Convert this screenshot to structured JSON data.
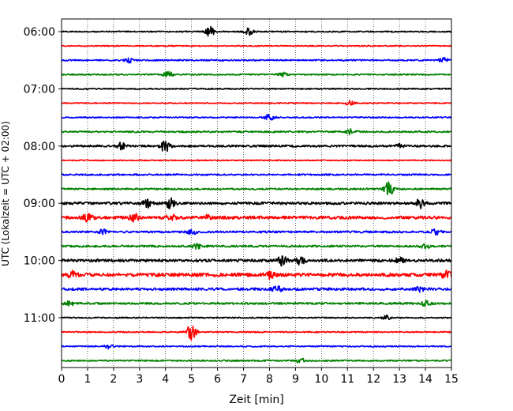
{
  "chart_data": {
    "type": "line",
    "title": "",
    "xlabel": "Zeit  [min]",
    "ylabel": "UTC (Lokalzeit = UTC + 02:00)",
    "xlim": [
      0,
      15
    ],
    "x_ticks": [
      0,
      1,
      2,
      3,
      4,
      5,
      6,
      7,
      8,
      9,
      10,
      11,
      12,
      13,
      14,
      15
    ],
    "x_tick_labels": [
      "0",
      "1",
      "2",
      "3",
      "4",
      "5",
      "6",
      "7",
      "8",
      "9",
      "10",
      "11",
      "12",
      "13",
      "14",
      "15"
    ],
    "y_tick_labels": [
      "06:00",
      "07:00",
      "08:00",
      "09:00",
      "10:00",
      "11:00"
    ],
    "grid": "vertical dotted",
    "trace_colors": [
      "#000000",
      "#ff0000",
      "#0000ff",
      "#008000"
    ],
    "series": [
      {
        "start": "06:00",
        "amplitude": 0.35,
        "events": [
          [
            5.7,
            1.6
          ],
          [
            7.2,
            1.2
          ]
        ]
      },
      {
        "start": "06:15",
        "amplitude": 0.3,
        "events": []
      },
      {
        "start": "06:30",
        "amplitude": 0.4,
        "events": [
          [
            2.6,
            1.0
          ],
          [
            14.7,
            1.0
          ]
        ]
      },
      {
        "start": "06:45",
        "amplitude": 0.35,
        "events": [
          [
            4.1,
            1.2
          ],
          [
            8.5,
            1.0
          ]
        ]
      },
      {
        "start": "07:00",
        "amplitude": 0.35,
        "events": []
      },
      {
        "start": "07:15",
        "amplitude": 0.3,
        "events": [
          [
            11.1,
            1.0
          ]
        ]
      },
      {
        "start": "07:30",
        "amplitude": 0.35,
        "events": [
          [
            8.0,
            1.2
          ]
        ]
      },
      {
        "start": "07:45",
        "amplitude": 0.45,
        "events": [
          [
            11.1,
            1.1
          ]
        ]
      },
      {
        "start": "08:00",
        "amplitude": 0.55,
        "events": [
          [
            2.3,
            1.2
          ],
          [
            4.0,
            1.8
          ],
          [
            13.0,
            0.9
          ]
        ]
      },
      {
        "start": "08:15",
        "amplitude": 0.3,
        "events": []
      },
      {
        "start": "08:30",
        "amplitude": 0.45,
        "events": []
      },
      {
        "start": "08:45",
        "amplitude": 0.45,
        "events": [
          [
            12.6,
            1.8
          ]
        ]
      },
      {
        "start": "09:00",
        "amplitude": 0.7,
        "events": [
          [
            3.3,
            1.3
          ],
          [
            4.2,
            1.5
          ],
          [
            13.8,
            1.4
          ]
        ]
      },
      {
        "start": "09:15",
        "amplitude": 0.85,
        "events": [
          [
            1.0,
            1.2
          ],
          [
            2.8,
            1.2
          ],
          [
            4.2,
            1.2
          ],
          [
            5.6,
            1.0
          ]
        ]
      },
      {
        "start": "09:30",
        "amplitude": 0.55,
        "events": [
          [
            1.6,
            1.0
          ],
          [
            5.0,
            1.1
          ],
          [
            14.4,
            1.2
          ]
        ]
      },
      {
        "start": "09:45",
        "amplitude": 0.55,
        "events": [
          [
            5.2,
            1.0
          ],
          [
            14.0,
            1.0
          ]
        ]
      },
      {
        "start": "10:00",
        "amplitude": 0.75,
        "events": [
          [
            8.5,
            1.5
          ],
          [
            9.2,
            1.3
          ],
          [
            13.0,
            1.1
          ]
        ]
      },
      {
        "start": "10:15",
        "amplitude": 0.95,
        "events": [
          [
            0.4,
            1.3
          ],
          [
            8.0,
            1.1
          ],
          [
            14.8,
            1.2
          ]
        ]
      },
      {
        "start": "10:30",
        "amplitude": 0.7,
        "events": [
          [
            8.3,
            1.1
          ],
          [
            13.8,
            1.1
          ]
        ]
      },
      {
        "start": "10:45",
        "amplitude": 0.55,
        "events": [
          [
            0.3,
            1.0
          ],
          [
            14.0,
            1.0
          ]
        ]
      },
      {
        "start": "11:00",
        "amplitude": 0.35,
        "events": [
          [
            12.5,
            1.0
          ]
        ]
      },
      {
        "start": "11:15",
        "amplitude": 0.35,
        "events": [
          [
            5.0,
            2.2
          ]
        ]
      },
      {
        "start": "11:30",
        "amplitude": 0.35,
        "events": [
          [
            1.8,
            1.0
          ]
        ]
      },
      {
        "start": "11:45",
        "amplitude": 0.4,
        "events": [
          [
            9.2,
            1.0
          ]
        ]
      }
    ]
  }
}
